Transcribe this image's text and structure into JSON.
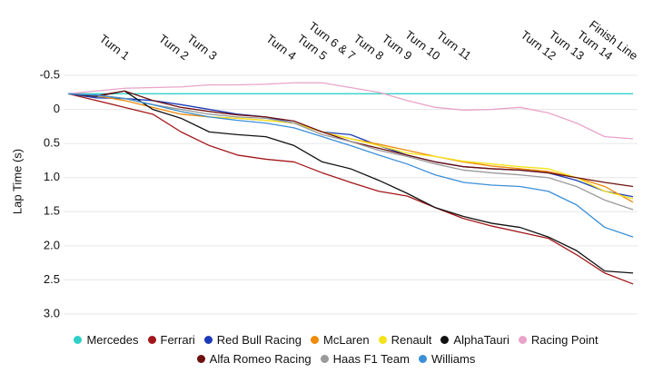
{
  "chart_data": {
    "type": "line",
    "y_label": "Lap Time (s)",
    "y_inverted": true,
    "grid": true,
    "xlim": [
      0,
      100
    ],
    "xticks": [
      {
        "value": 10.5,
        "label": "Turn 1"
      },
      {
        "value": 21,
        "label": "Turn 2"
      },
      {
        "value": 26,
        "label": "Turn 3"
      },
      {
        "value": 40,
        "label": "Turn 4"
      },
      {
        "value": 45.5,
        "label": "Turn 5"
      },
      {
        "value": 50.5,
        "label": "Turn 6 & 7"
      },
      {
        "value": 55.5,
        "label": "Turn 8"
      },
      {
        "value": 60.5,
        "label": "Turn 9"
      },
      {
        "value": 65.5,
        "label": "Turn 10"
      },
      {
        "value": 71,
        "label": "Turn 11"
      },
      {
        "value": 86,
        "label": "Turn 12"
      },
      {
        "value": 91,
        "label": "Turn 13"
      },
      {
        "value": 96,
        "label": "Turn 14"
      },
      {
        "value": 100.5,
        "label": "Finish Line"
      }
    ],
    "ylim": [
      -0.5,
      3.0
    ],
    "yticks": [
      -0.5,
      0,
      {
        "value": 0.5,
        "label": "0.5"
      },
      {
        "value": 1,
        "label": "1.0"
      },
      1.5,
      {
        "value": 2,
        "label": "2.0"
      },
      2.5,
      {
        "value": 3,
        "label": "3.0"
      }
    ],
    "x": [
      0,
      5,
      10,
      15,
      20,
      25,
      30,
      35,
      40,
      45,
      50,
      55,
      60,
      65,
      70,
      75,
      80,
      85,
      90,
      95,
      100
    ],
    "series": [
      {
        "name": "Mercedes",
        "color": "#2fd0c8",
        "values": [
          -0.23,
          -0.23,
          -0.23,
          -0.23,
          -0.23,
          -0.23,
          -0.23,
          -0.23,
          -0.23,
          -0.23,
          -0.23,
          -0.23,
          -0.23,
          -0.23,
          -0.23,
          -0.23,
          -0.23,
          -0.23,
          -0.23,
          -0.23,
          -0.23
        ]
      },
      {
        "name": "Ferrari",
        "color": "#a3171b",
        "values": [
          -0.23,
          -0.13,
          -0.03,
          0.07,
          0.33,
          0.53,
          0.67,
          0.73,
          0.77,
          0.93,
          1.07,
          1.2,
          1.27,
          1.44,
          1.6,
          1.71,
          1.8,
          1.89,
          2.13,
          2.4,
          2.56
        ]
      },
      {
        "name": "Red Bull Racing",
        "color": "#1c3bb8",
        "values": [
          -0.23,
          -0.17,
          -0.16,
          -0.13,
          -0.07,
          0,
          0.07,
          0.11,
          0.2,
          0.33,
          0.37,
          0.53,
          0.67,
          0.77,
          0.84,
          0.87,
          0.89,
          0.93,
          1.04,
          1.2,
          1.28
        ]
      },
      {
        "name": "McLaren",
        "color": "#f08a0a",
        "values": [
          -0.23,
          -0.2,
          -0.13,
          -0.03,
          0.07,
          0.11,
          0.13,
          0.16,
          0.2,
          0.33,
          0.43,
          0.51,
          0.6,
          0.69,
          0.77,
          0.83,
          0.87,
          0.91,
          1,
          1.13,
          1.36
        ]
      },
      {
        "name": "Renault",
        "color": "#f4e31a",
        "values": [
          -0.23,
          -0.21,
          -0.16,
          -0.07,
          0.03,
          0.11,
          0.13,
          0.16,
          0.2,
          0.33,
          0.43,
          0.53,
          0.64,
          0.69,
          0.76,
          0.8,
          0.84,
          0.87,
          1,
          1.2,
          1.31
        ]
      },
      {
        "name": "AlphaTauri",
        "color": "#111111",
        "values": [
          -0.23,
          -0.19,
          -0.27,
          0,
          0.13,
          0.33,
          0.37,
          0.4,
          0.53,
          0.77,
          0.87,
          1.04,
          1.23,
          1.44,
          1.57,
          1.67,
          1.73,
          1.87,
          2.07,
          2.37,
          2.4
        ]
      },
      {
        "name": "Racing Point",
        "color": "#e9a3c9",
        "values": [
          -0.23,
          -0.27,
          -0.31,
          -0.32,
          -0.33,
          -0.36,
          -0.36,
          -0.37,
          -0.39,
          -0.39,
          -0.32,
          -0.25,
          -0.13,
          -0.03,
          0.01,
          0,
          -0.03,
          0.05,
          0.2,
          0.4,
          0.43
        ]
      },
      {
        "name": "Alfa Romeo Racing",
        "color": "#6e1010",
        "values": [
          -0.23,
          -0.2,
          -0.27,
          -0.13,
          -0.03,
          0.03,
          0.08,
          0.11,
          0.17,
          0.33,
          0.47,
          0.57,
          0.67,
          0.77,
          0.84,
          0.87,
          0.89,
          0.93,
          1,
          1.07,
          1.13
        ]
      },
      {
        "name": "Haas F1 Team",
        "color": "#9a9a9a",
        "values": [
          -0.23,
          -0.21,
          -0.16,
          -0.07,
          0,
          0.07,
          0.11,
          0.13,
          0.2,
          0.37,
          0.47,
          0.6,
          0.69,
          0.8,
          0.89,
          0.93,
          0.96,
          1,
          1.13,
          1.33,
          1.47
        ]
      },
      {
        "name": "Williams",
        "color": "#3b8fd8",
        "values": [
          -0.23,
          -0.21,
          -0.16,
          -0.07,
          0.03,
          0.11,
          0.16,
          0.2,
          0.27,
          0.4,
          0.53,
          0.67,
          0.8,
          0.96,
          1.07,
          1.11,
          1.13,
          1.2,
          1.4,
          1.73,
          1.87
        ]
      }
    ]
  }
}
